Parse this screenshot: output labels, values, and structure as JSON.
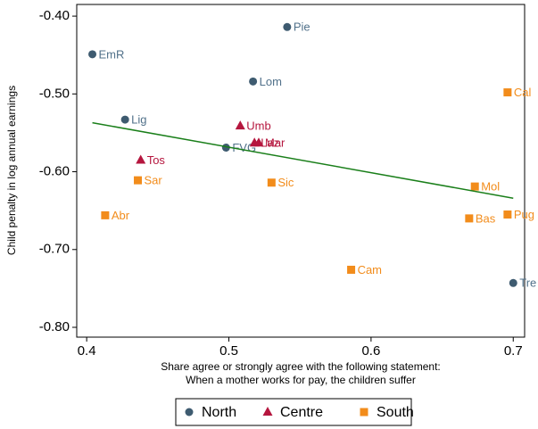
{
  "chart_data": {
    "type": "scatter",
    "y_label": "Child penalty in log annual earnings",
    "x_label": [
      "Share agree or strongly agree with the following statement:",
      "When a mother works for pay, the children suffer"
    ],
    "xlim": [
      0.393,
      0.708
    ],
    "ylim": [
      -0.8126,
      -0.385
    ],
    "xticks": [
      0.4,
      0.5,
      0.6,
      0.7
    ],
    "yticks": [
      {
        "value": -0.4,
        "label": "-0.40"
      },
      {
        "value": -0.5,
        "label": "-0.50"
      },
      {
        "value": -0.6,
        "label": "-0.60"
      },
      {
        "value": -0.7,
        "label": "-0.70"
      },
      {
        "value": -0.8,
        "label": "-0.80"
      }
    ],
    "legend": "bottom",
    "series": [
      {
        "name": "North",
        "color": "#3e5b70",
        "label_color": "#51718a",
        "marker": "circle",
        "labels": [
          "EmR",
          "Pie",
          "Lom",
          "Lig",
          "FVG",
          "Tre"
        ],
        "x": [
          0.404,
          0.541,
          0.517,
          0.427,
          0.498,
          0.7
        ],
        "values": [
          -0.449,
          -0.414,
          -0.484,
          -0.533,
          -0.569,
          -0.743
        ]
      },
      {
        "name": "Centre",
        "color": "#b5163e",
        "label_color": "#b5163e",
        "marker": "triangle",
        "labels": [
          "Umb",
          "Tos",
          "Laz",
          "Mar"
        ],
        "x": [
          0.508,
          0.438,
          0.518,
          0.521
        ],
        "values": [
          -0.541,
          -0.585,
          -0.563,
          -0.563
        ]
      },
      {
        "name": "South",
        "color": "#f28c1b",
        "label_color": "#f28c1b",
        "marker": "square",
        "labels": [
          "Cal",
          "Sar",
          "Abr",
          "Sic",
          "Mol",
          "Bas",
          "Pug",
          "Cam"
        ],
        "x": [
          0.696,
          0.436,
          0.413,
          0.53,
          0.673,
          0.669,
          0.696,
          0.586
        ],
        "values": [
          -0.498,
          -0.611,
          -0.656,
          -0.614,
          -0.619,
          -0.66,
          -0.655,
          -0.726
        ]
      }
    ],
    "fit_line": {
      "color": "#1a7f1a",
      "x": [
        0.404,
        0.7
      ],
      "values": [
        -0.537,
        -0.634
      ]
    }
  }
}
